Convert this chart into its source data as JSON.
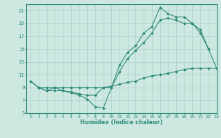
{
  "line1_x": [
    0,
    1,
    2,
    3,
    4,
    5,
    6,
    7,
    8,
    9,
    10,
    11,
    12,
    13,
    14,
    15,
    16,
    17,
    18,
    19,
    20,
    21,
    22
  ],
  "line1_y": [
    10.0,
    9.0,
    8.5,
    9.0,
    8.5,
    8.2,
    7.8,
    7.2,
    6.0,
    5.8,
    9.0,
    12.5,
    14.5,
    15.5,
    17.5,
    18.5,
    21.5,
    20.5,
    20.0,
    20.0,
    19.0,
    18.0,
    15.0
  ],
  "line2_x": [
    0,
    1,
    2,
    3,
    4,
    5,
    6,
    7,
    8,
    9,
    10,
    11,
    12,
    13,
    14,
    15,
    16,
    17,
    18,
    19,
    20,
    21,
    22,
    23
  ],
  "line2_y": [
    10.0,
    9.0,
    9.0,
    9.0,
    9.0,
    9.0,
    9.0,
    9.0,
    9.0,
    9.0,
    9.0,
    11.5,
    13.5,
    14.8,
    16.0,
    17.5,
    19.5,
    19.8,
    19.5,
    19.0,
    19.0,
    17.5,
    15.0,
    12.0
  ],
  "line3_x": [
    1,
    2,
    3,
    4,
    5,
    6,
    7,
    8,
    9,
    10,
    11,
    12,
    13,
    14,
    15,
    16,
    17,
    18,
    19,
    20,
    21,
    22,
    23
  ],
  "line3_y": [
    9.0,
    8.5,
    8.5,
    8.5,
    8.3,
    8.0,
    7.8,
    7.8,
    9.0,
    9.2,
    9.5,
    9.8,
    10.0,
    10.5,
    10.8,
    11.0,
    11.2,
    11.5,
    11.8,
    12.0,
    12.0,
    12.0,
    12.0
  ],
  "color": "#2e8b7a",
  "bg_color": "#cce8e0",
  "grid_color": "#aacfca",
  "xlabel": "Humidex (Indice chaleur)",
  "ylim": [
    5,
    22
  ],
  "xlim": [
    -0.5,
    23
  ],
  "yticks": [
    5,
    7,
    9,
    11,
    13,
    15,
    17,
    19,
    21
  ],
  "xticks": [
    0,
    1,
    2,
    3,
    4,
    5,
    6,
    7,
    8,
    9,
    10,
    11,
    12,
    13,
    14,
    15,
    16,
    17,
    18,
    19,
    20,
    21,
    22,
    23
  ]
}
